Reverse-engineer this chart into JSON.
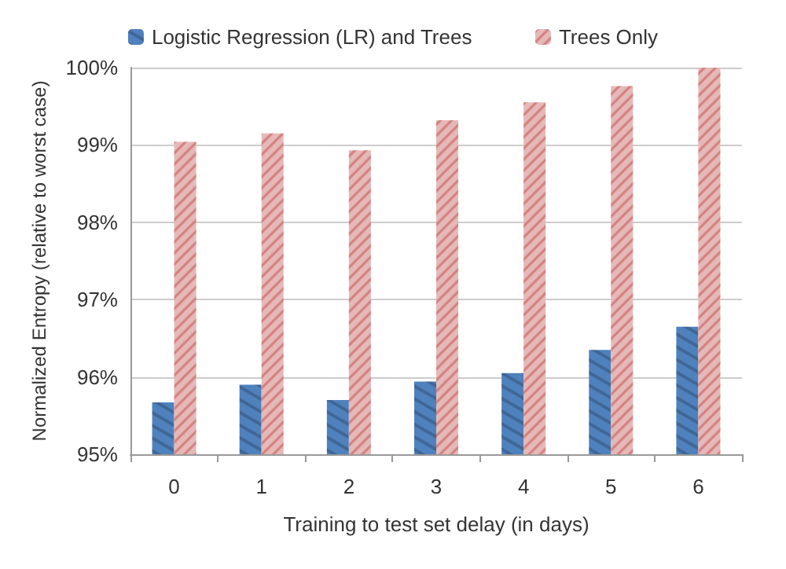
{
  "chart_data": {
    "type": "bar",
    "categories": [
      "0",
      "1",
      "2",
      "3",
      "4",
      "5",
      "6"
    ],
    "series": [
      {
        "name": "Logistic Regression (LR) and Trees",
        "color": "#4f81bd",
        "values": [
          95.67,
          95.9,
          95.7,
          95.94,
          96.05,
          96.35,
          96.65
        ]
      },
      {
        "name": "Trees Only",
        "color": "#e6b9b8",
        "values": [
          99.04,
          99.15,
          98.93,
          99.32,
          99.55,
          99.76,
          100
        ]
      }
    ],
    "ylim": [
      95,
      100
    ],
    "yticks": [
      {
        "value": 95,
        "label": "95%"
      },
      {
        "value": 96,
        "label": "96%"
      },
      {
        "value": 97,
        "label": "97%"
      },
      {
        "value": 98,
        "label": "98%"
      },
      {
        "value": 99,
        "label": "99%"
      },
      {
        "value": 100,
        "label": "100%"
      }
    ],
    "xlabel": "Training to test set delay (in days)",
    "ylabel": "Normalized Entropy (relative to worst case)",
    "grid": "y",
    "legend": "top"
  }
}
